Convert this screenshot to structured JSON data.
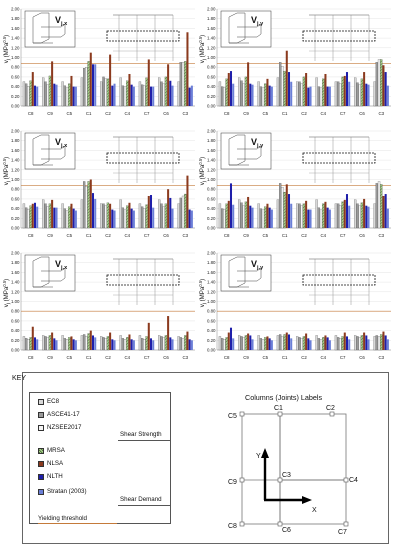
{
  "chart_data": [
    {
      "type": "bar",
      "panel": "top-left",
      "label": "V",
      "sub": "j,x",
      "ylabel": "v",
      "ylabel_sub": "j",
      "ylabel_unit": "(MPa",
      "ylabel_exp": "0.5",
      "ylabel_close": ")",
      "ylim": [
        0,
        2
      ],
      "yticks": [
        "0.00",
        "0.20",
        "0.40",
        "0.60",
        "0.80",
        "1.00",
        "1.20",
        "1.40",
        "1.60",
        "1.80",
        "2.00"
      ],
      "categories": [
        "C8",
        "C9",
        "C5",
        "C1",
        "C2",
        "C4",
        "C7",
        "C6",
        "C3"
      ],
      "series": [
        {
          "name": "EC8",
          "values": [
            0.5,
            0.58,
            0.5,
            0.58,
            0.5,
            0.58,
            0.5,
            0.58,
            0.5
          ]
        },
        {
          "name": "ASCE41-17",
          "values": [
            0.46,
            0.5,
            0.42,
            0.78,
            0.6,
            0.42,
            0.44,
            0.5,
            0.9
          ]
        },
        {
          "name": "NZSEE2017",
          "values": [
            0.4,
            0.44,
            0.38,
            0.8,
            0.56,
            0.4,
            0.42,
            0.46,
            0.9
          ]
        },
        {
          "name": "MRSA",
          "values": [
            0.52,
            0.62,
            0.46,
            0.92,
            0.56,
            0.52,
            0.58,
            0.6,
            0.92
          ]
        },
        {
          "name": "NLSA",
          "values": [
            0.7,
            0.92,
            0.62,
            1.1,
            1.06,
            0.66,
            0.96,
            0.86,
            1.52
          ]
        },
        {
          "name": "NLTH",
          "values": [
            0.42,
            0.46,
            0.4,
            0.86,
            0.42,
            0.44,
            0.4,
            0.52,
            0.38
          ]
        },
        {
          "name": "Stratan (2003)",
          "values": [
            0.4,
            0.44,
            0.4,
            0.86,
            0.46,
            0.4,
            0.4,
            0.42,
            0.42
          ]
        }
      ],
      "yield": 0.88
    },
    {
      "type": "bar",
      "panel": "top-right",
      "label": "V",
      "sub": "j,y",
      "ylabel": "v",
      "ylabel_sub": "j",
      "ylabel_unit": "(MPa",
      "ylabel_exp": "0.5",
      "ylabel_close": ")",
      "ylim": [
        0,
        2
      ],
      "yticks": [
        "0.00",
        "0.20",
        "0.40",
        "0.60",
        "0.80",
        "1.00",
        "1.20",
        "1.40",
        "1.60",
        "1.80",
        "2.00"
      ],
      "categories": [
        "C8",
        "C9",
        "C5",
        "C1",
        "C2",
        "C4",
        "C7",
        "C6",
        "C3"
      ],
      "series": [
        {
          "name": "EC8",
          "values": [
            0.5,
            0.58,
            0.5,
            0.58,
            0.5,
            0.58,
            0.5,
            0.58,
            0.5
          ]
        },
        {
          "name": "ASCE41-17",
          "values": [
            0.4,
            0.52,
            0.4,
            0.9,
            0.5,
            0.4,
            0.5,
            0.48,
            0.9
          ]
        },
        {
          "name": "NZSEE2017",
          "values": [
            0.38,
            0.46,
            0.38,
            0.82,
            0.46,
            0.38,
            0.46,
            0.44,
            0.96
          ]
        },
        {
          "name": "MRSA",
          "values": [
            0.56,
            0.6,
            0.46,
            0.72,
            0.6,
            0.56,
            0.6,
            0.56,
            0.96
          ]
        },
        {
          "name": "NLSA",
          "values": [
            0.68,
            0.9,
            0.56,
            1.14,
            0.68,
            0.66,
            0.62,
            0.7,
            0.84
          ]
        },
        {
          "name": "NLTH",
          "values": [
            0.72,
            0.46,
            0.42,
            0.7,
            0.38,
            0.4,
            0.7,
            0.46,
            0.7
          ]
        },
        {
          "name": "Stratan (2003)",
          "values": [
            0.46,
            0.44,
            0.4,
            0.5,
            0.4,
            0.4,
            0.5,
            0.44,
            0.42
          ]
        }
      ],
      "yield": 0.88
    },
    {
      "type": "bar",
      "panel": "middle-left",
      "label": "V",
      "sub": "j,x",
      "ylabel": "v",
      "ylabel_sub": "j",
      "ylabel_unit": "(MPa",
      "ylabel_exp": "0.5",
      "ylabel_close": ")",
      "ylim": [
        0,
        2
      ],
      "yticks": [
        "0.00",
        "0.20",
        "0.40",
        "0.60",
        "0.80",
        "1.00",
        "1.20",
        "1.40",
        "1.60",
        "1.80",
        "2.00"
      ],
      "categories": [
        "C8",
        "C9",
        "C5",
        "C1",
        "C2",
        "C4",
        "C7",
        "C6",
        "C3"
      ],
      "series": [
        {
          "name": "EC8",
          "values": [
            0.5,
            0.58,
            0.5,
            0.58,
            0.5,
            0.58,
            0.5,
            0.58,
            0.5
          ]
        },
        {
          "name": "ASCE41-17",
          "values": [
            0.42,
            0.5,
            0.4,
            0.96,
            0.5,
            0.42,
            0.44,
            0.5,
            0.62
          ]
        },
        {
          "name": "NZSEE2017",
          "values": [
            0.38,
            0.44,
            0.36,
            0.86,
            0.46,
            0.38,
            0.4,
            0.44,
            0.66
          ]
        },
        {
          "name": "MRSA",
          "values": [
            0.46,
            0.5,
            0.44,
            0.96,
            0.52,
            0.46,
            0.48,
            0.5,
            0.7
          ]
        },
        {
          "name": "NLSA",
          "values": [
            0.5,
            0.58,
            0.5,
            1.0,
            0.5,
            0.52,
            0.66,
            0.8,
            1.08
          ]
        },
        {
          "name": "NLTH",
          "values": [
            0.52,
            0.42,
            0.4,
            0.72,
            0.38,
            0.4,
            0.68,
            0.62,
            0.38
          ]
        },
        {
          "name": "Stratan (2003)",
          "values": [
            0.44,
            0.42,
            0.36,
            0.6,
            0.36,
            0.36,
            0.42,
            0.4,
            0.36
          ]
        }
      ],
      "yield": 0.88
    },
    {
      "type": "bar",
      "panel": "middle-right",
      "label": "V",
      "sub": "j,y",
      "ylabel": "v",
      "ylabel_sub": "j",
      "ylabel_unit": "(MPa",
      "ylabel_exp": "0.5",
      "ylabel_close": ")",
      "ylim": [
        0,
        2
      ],
      "yticks": [
        "0.00",
        "0.20",
        "0.40",
        "0.60",
        "0.80",
        "1.00",
        "1.20",
        "1.40",
        "1.60",
        "1.80",
        "2.00"
      ],
      "categories": [
        "C8",
        "C9",
        "C5",
        "C1",
        "C2",
        "C4",
        "C7",
        "C6",
        "C3"
      ],
      "series": [
        {
          "name": "EC8",
          "values": [
            0.5,
            0.58,
            0.5,
            0.58,
            0.5,
            0.58,
            0.5,
            0.58,
            0.5
          ]
        },
        {
          "name": "ASCE41-17",
          "values": [
            0.4,
            0.52,
            0.4,
            0.92,
            0.5,
            0.42,
            0.5,
            0.5,
            0.92
          ]
        },
        {
          "name": "NZSEE2017",
          "values": [
            0.38,
            0.46,
            0.38,
            0.84,
            0.46,
            0.38,
            0.46,
            0.46,
            0.96
          ]
        },
        {
          "name": "MRSA",
          "values": [
            0.5,
            0.54,
            0.44,
            0.74,
            0.5,
            0.5,
            0.54,
            0.52,
            0.9
          ]
        },
        {
          "name": "NLSA",
          "values": [
            0.56,
            0.64,
            0.5,
            0.9,
            0.56,
            0.54,
            0.58,
            0.6,
            0.66
          ]
        },
        {
          "name": "NLTH",
          "values": [
            0.92,
            0.46,
            0.42,
            0.7,
            0.38,
            0.42,
            0.7,
            0.46,
            0.7
          ]
        },
        {
          "name": "Stratan (2003)",
          "values": [
            0.48,
            0.42,
            0.38,
            0.5,
            0.38,
            0.38,
            0.46,
            0.44,
            0.4
          ]
        }
      ],
      "yield": 0.88
    },
    {
      "type": "bar",
      "panel": "bottom-left",
      "label": "V",
      "sub": "j,x",
      "ylabel": "v",
      "ylabel_sub": "j",
      "ylabel_unit": "(MPa",
      "ylabel_exp": "0.5",
      "ylabel_close": ")",
      "ylim": [
        0,
        2
      ],
      "yticks": [
        "0.00",
        "0.20",
        "0.40",
        "0.60",
        "0.80",
        "1.00",
        "1.20",
        "1.40",
        "1.60",
        "1.80",
        "2.00"
      ],
      "categories": [
        "C8",
        "C9",
        "C5",
        "C1",
        "C2",
        "C4",
        "C7",
        "C6",
        "C3"
      ],
      "series": [
        {
          "name": "EC8",
          "values": [
            0.28,
            0.3,
            0.3,
            0.3,
            0.28,
            0.3,
            0.3,
            0.3,
            0.28
          ]
        },
        {
          "name": "ASCE41-17",
          "values": [
            0.24,
            0.28,
            0.24,
            0.32,
            0.26,
            0.24,
            0.24,
            0.28,
            0.26
          ]
        },
        {
          "name": "NZSEE2017",
          "values": [
            0.22,
            0.26,
            0.22,
            0.28,
            0.24,
            0.22,
            0.22,
            0.26,
            0.24
          ]
        },
        {
          "name": "MRSA",
          "values": [
            0.26,
            0.3,
            0.26,
            0.34,
            0.28,
            0.26,
            0.28,
            0.3,
            0.3
          ]
        },
        {
          "name": "NLSA",
          "values": [
            0.48,
            0.36,
            0.28,
            0.4,
            0.36,
            0.32,
            0.56,
            0.7,
            0.38
          ]
        },
        {
          "name": "NLTH",
          "values": [
            0.26,
            0.24,
            0.22,
            0.3,
            0.22,
            0.22,
            0.24,
            0.26,
            0.22
          ]
        },
        {
          "name": "Stratan (2003)",
          "values": [
            0.22,
            0.2,
            0.2,
            0.26,
            0.2,
            0.2,
            0.2,
            0.22,
            0.2
          ]
        }
      ],
      "yield": 0.8
    },
    {
      "type": "bar",
      "panel": "bottom-right",
      "label": "V",
      "sub": "j,y",
      "ylabel": "v",
      "ylabel_sub": "j",
      "ylabel_unit": "(MPa",
      "ylabel_exp": "0.5",
      "ylabel_close": ")",
      "ylim": [
        0,
        2
      ],
      "yticks": [
        "0.00",
        "0.20",
        "0.40",
        "0.60",
        "0.80",
        "1.00",
        "1.20",
        "1.40",
        "1.60",
        "1.80",
        "2.00"
      ],
      "categories": [
        "C8",
        "C9",
        "C5",
        "C1",
        "C2",
        "C4",
        "C7",
        "C6",
        "C3"
      ],
      "series": [
        {
          "name": "EC8",
          "values": [
            0.28,
            0.3,
            0.3,
            0.3,
            0.28,
            0.3,
            0.3,
            0.3,
            0.28
          ]
        },
        {
          "name": "ASCE41-17",
          "values": [
            0.24,
            0.28,
            0.24,
            0.32,
            0.26,
            0.24,
            0.26,
            0.28,
            0.3
          ]
        },
        {
          "name": "NZSEE2017",
          "values": [
            0.22,
            0.26,
            0.22,
            0.28,
            0.24,
            0.22,
            0.24,
            0.26,
            0.28
          ]
        },
        {
          "name": "MRSA",
          "values": [
            0.26,
            0.3,
            0.26,
            0.32,
            0.28,
            0.26,
            0.28,
            0.3,
            0.32
          ]
        },
        {
          "name": "NLSA",
          "values": [
            0.36,
            0.34,
            0.28,
            0.36,
            0.34,
            0.3,
            0.36,
            0.36,
            0.38
          ]
        },
        {
          "name": "NLTH",
          "values": [
            0.46,
            0.3,
            0.24,
            0.32,
            0.24,
            0.26,
            0.28,
            0.3,
            0.3
          ]
        },
        {
          "name": "Stratan (2003)",
          "values": [
            0.24,
            0.22,
            0.2,
            0.24,
            0.2,
            0.2,
            0.22,
            0.22,
            0.22
          ]
        }
      ],
      "yield": 0.8
    }
  ],
  "colors": {
    "EC8": "#d8d8d8",
    "ASCE41-17": "#9a9a9a",
    "NZSEE2017": "#f4f4f4",
    "MRSA": "#a9d18e",
    "NLSA": "#8b3a1e",
    "NLTH": "#1f1faa",
    "Stratan (2003)": "#6b7fd7",
    "yield": "#c47a3a"
  },
  "key": {
    "title": "KEY",
    "items": [
      "EC8",
      "ASCE41-17",
      "NZSEE2017",
      "MRSA",
      "NLSA",
      "NLTH",
      "Stratan (2003)"
    ],
    "shear_strength": "Shear Strength",
    "shear_demand": "Shear Demand",
    "yielding": "Yielding threshold"
  },
  "plan": {
    "title": "Columns (Joints) Labels",
    "labels": [
      "C1",
      "C2",
      "C5",
      "C9",
      "C3",
      "C4",
      "C8",
      "C6",
      "C7"
    ],
    "axis_y": "Y",
    "axis_x": "X"
  }
}
